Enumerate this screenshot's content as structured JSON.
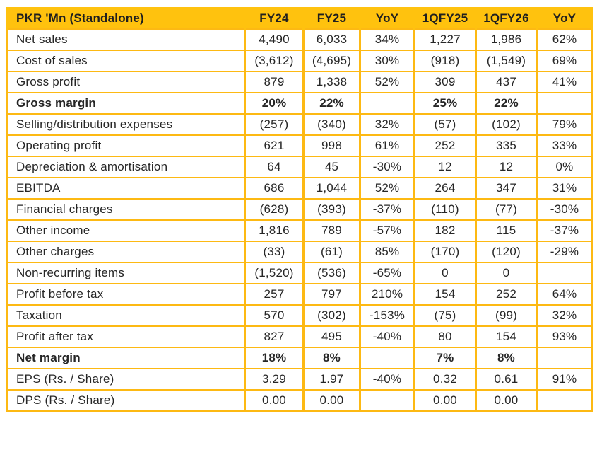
{
  "colors": {
    "header_bg": "#FFC20E",
    "border": "#FDB913",
    "text": "#262626"
  },
  "table": {
    "columns": [
      "PKR 'Mn (Standalone)",
      "FY24",
      "FY25",
      "YoY",
      "1QFY25",
      "1QFY26",
      "YoY"
    ],
    "rows": [
      {
        "label": "Net sales",
        "cells": [
          "4,490",
          "6,033",
          "34%",
          "1,227",
          "1,986",
          "62%"
        ],
        "bold": false
      },
      {
        "label": "Cost of sales",
        "cells": [
          "(3,612)",
          "(4,695)",
          "30%",
          "(918)",
          "(1,549)",
          "69%"
        ],
        "bold": false
      },
      {
        "label": "Gross profit",
        "cells": [
          "879",
          "1,338",
          "52%",
          "309",
          "437",
          "41%"
        ],
        "bold": false
      },
      {
        "label": "Gross margin",
        "cells": [
          "20%",
          "22%",
          "",
          "25%",
          "22%",
          ""
        ],
        "bold": true
      },
      {
        "label": "Selling/distribution expenses",
        "cells": [
          "(257)",
          "(340)",
          "32%",
          "(57)",
          "(102)",
          "79%"
        ],
        "bold": false
      },
      {
        "label": "Operating profit",
        "cells": [
          "621",
          "998",
          "61%",
          "252",
          "335",
          "33%"
        ],
        "bold": false
      },
      {
        "label": "Depreciation & amortisation",
        "cells": [
          "64",
          "45",
          "-30%",
          "12",
          "12",
          "0%"
        ],
        "bold": false
      },
      {
        "label": "EBITDA",
        "cells": [
          "686",
          "1,044",
          "52%",
          "264",
          "347",
          "31%"
        ],
        "bold": false
      },
      {
        "label": "Financial charges",
        "cells": [
          "(628)",
          "(393)",
          "-37%",
          "(110)",
          "(77)",
          "-30%"
        ],
        "bold": false
      },
      {
        "label": "Other income",
        "cells": [
          "1,816",
          "789",
          "-57%",
          "182",
          "115",
          "-37%"
        ],
        "bold": false
      },
      {
        "label": "Other charges",
        "cells": [
          "(33)",
          "(61)",
          "85%",
          "(170)",
          "(120)",
          "-29%"
        ],
        "bold": false
      },
      {
        "label": "Non-recurring items",
        "cells": [
          "(1,520)",
          "(536)",
          "-65%",
          "0",
          "0",
          ""
        ],
        "bold": false
      },
      {
        "label": "Profit before tax",
        "cells": [
          "257",
          "797",
          "210%",
          "154",
          "252",
          "64%"
        ],
        "bold": false
      },
      {
        "label": "Taxation",
        "cells": [
          "570",
          "(302)",
          "-153%",
          "(75)",
          "(99)",
          "32%"
        ],
        "bold": false
      },
      {
        "label": "Profit after tax",
        "cells": [
          "827",
          "495",
          "-40%",
          "80",
          "154",
          "93%"
        ],
        "bold": false
      },
      {
        "label": "Net margin",
        "cells": [
          "18%",
          "8%",
          "",
          "7%",
          "8%",
          ""
        ],
        "bold": true
      },
      {
        "label": "EPS (Rs. / Share)",
        "cells": [
          "3.29",
          "1.97",
          "-40%",
          "0.32",
          "0.61",
          "91%"
        ],
        "bold": false
      },
      {
        "label": "DPS (Rs. / Share)",
        "cells": [
          "0.00",
          "0.00",
          "",
          "0.00",
          "0.00",
          ""
        ],
        "bold": false
      }
    ]
  }
}
